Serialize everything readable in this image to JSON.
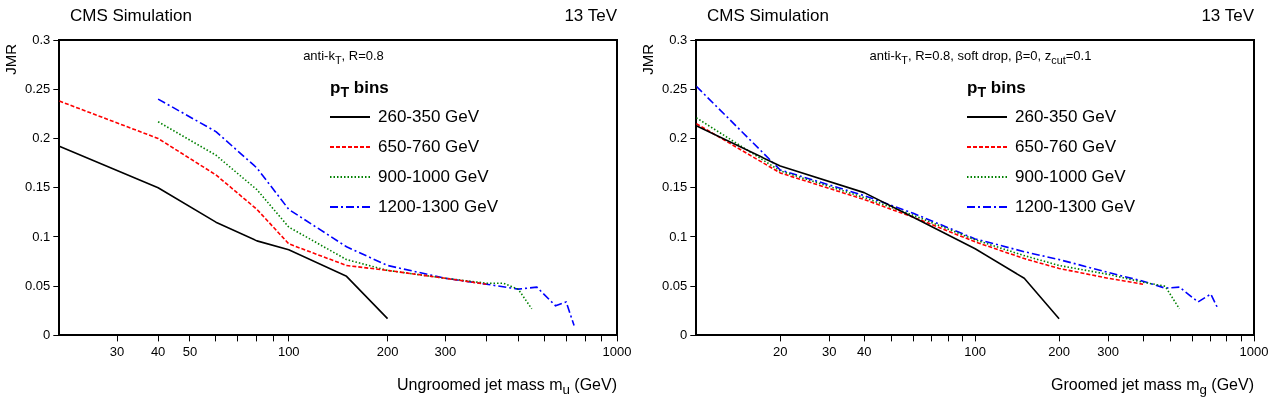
{
  "chart_data": [
    {
      "type": "line",
      "title": "CMS Simulation",
      "subtitle": "13 TeV",
      "annotations": [
        "anti-k$_{T}$, R=0.8"
      ],
      "legend_title": "p$_{T}$ bins",
      "xlabel": "Ungroomed jet mass m$_{u}$ (GeV)",
      "ylabel": "JMR",
      "log": "x",
      "grid": false,
      "legend": "top right",
      "marker": "none",
      "xlim": [
        20,
        1000
      ],
      "xticks": [
        30,
        40,
        50,
        {
          "value": 60,
          "label": null
        },
        {
          "value": 70,
          "label": null
        },
        {
          "value": 80,
          "label": null
        },
        {
          "value": 90,
          "label": null
        },
        100,
        200,
        300,
        {
          "value": 400,
          "label": null
        },
        {
          "value": 500,
          "label": null
        },
        {
          "value": 600,
          "label": null
        },
        {
          "value": 700,
          "label": null
        },
        {
          "value": 800,
          "label": null
        },
        {
          "value": 900,
          "label": null
        },
        1000
      ],
      "ylim": [
        0,
        0.3
      ],
      "yticks": [
        0,
        0.05,
        0.1,
        0.15,
        0.2,
        0.25,
        0.3
      ],
      "series": [
        {
          "name": "260-350 GeV",
          "color": "#000000",
          "line_style": "solid",
          "x": [
            20,
            40,
            60,
            80,
            100,
            150,
            200
          ],
          "values": [
            0.192,
            0.15,
            0.115,
            0.096,
            0.087,
            0.06,
            0.017
          ]
        },
        {
          "name": "650-760 GeV",
          "color": "#ff0000",
          "line_style": "dashed",
          "x": [
            20,
            40,
            60,
            80,
            100,
            150,
            200,
            300,
            400
          ],
          "values": [
            0.238,
            0.2,
            0.163,
            0.128,
            0.093,
            0.071,
            0.066,
            0.058,
            0.052
          ]
        },
        {
          "name": "900-1000 GeV",
          "color": "#008000",
          "line_style": "dotted",
          "x": [
            40,
            60,
            80,
            100,
            150,
            200,
            300,
            400,
            450,
            500,
            550
          ],
          "values": [
            0.217,
            0.183,
            0.148,
            0.11,
            0.077,
            0.066,
            0.058,
            0.053,
            0.053,
            0.047,
            0.027
          ]
        },
        {
          "name": "1200-1300 GeV",
          "color": "#0000ff",
          "line_style": "dashdot",
          "x": [
            40,
            60,
            80,
            100,
            150,
            200,
            300,
            400,
            500,
            570,
            650,
            700,
            740
          ],
          "values": [
            0.24,
            0.207,
            0.17,
            0.128,
            0.09,
            0.071,
            0.058,
            0.052,
            0.047,
            0.049,
            0.03,
            0.034,
            0.01
          ]
        }
      ]
    },
    {
      "type": "line",
      "title": "CMS Simulation",
      "subtitle": "13 TeV",
      "annotations": [
        "anti-k$_{T}$, R=0.8, soft drop, β=0, z$_{cut}$=0.1"
      ],
      "legend_title": "p$_{T}$ bins",
      "xlabel": "Groomed jet mass m$_{g}$ (GeV)",
      "ylabel": "JMR",
      "log": "x",
      "grid": false,
      "legend": "top right",
      "marker": "none",
      "xlim": [
        10,
        1000
      ],
      "xticks": [
        20,
        30,
        40,
        {
          "value": 50,
          "label": null
        },
        {
          "value": 60,
          "label": null
        },
        {
          "value": 70,
          "label": null
        },
        {
          "value": 80,
          "label": null
        },
        {
          "value": 90,
          "label": null
        },
        100,
        200,
        300,
        {
          "value": 400,
          "label": null
        },
        {
          "value": 500,
          "label": null
        },
        {
          "value": 600,
          "label": null
        },
        {
          "value": 700,
          "label": null
        },
        {
          "value": 800,
          "label": null
        },
        {
          "value": 900,
          "label": null
        },
        1000
      ],
      "ylim": [
        0,
        0.3
      ],
      "yticks": [
        0,
        0.05,
        0.1,
        0.15,
        0.2,
        0.25,
        0.3
      ],
      "series": [
        {
          "name": "260-350 GeV",
          "color": "#000000",
          "line_style": "solid",
          "x": [
            10,
            20,
            40,
            60,
            100,
            150,
            200
          ],
          "values": [
            0.213,
            0.172,
            0.145,
            0.12,
            0.088,
            0.058,
            0.017
          ]
        },
        {
          "name": "650-760 GeV",
          "color": "#ff0000",
          "line_style": "dashed",
          "x": [
            10,
            20,
            40,
            60,
            100,
            150,
            200,
            300,
            400
          ],
          "values": [
            0.215,
            0.165,
            0.138,
            0.12,
            0.095,
            0.078,
            0.068,
            0.058,
            0.052
          ]
        },
        {
          "name": "900-1000 GeV",
          "color": "#008000",
          "line_style": "dotted",
          "x": [
            10,
            20,
            40,
            60,
            100,
            150,
            200,
            300,
            400,
            480,
            540
          ],
          "values": [
            0.221,
            0.167,
            0.14,
            0.122,
            0.097,
            0.081,
            0.071,
            0.062,
            0.054,
            0.05,
            0.027
          ]
        },
        {
          "name": "1200-1300 GeV",
          "color": "#0000ff",
          "line_style": "dashdot",
          "x": [
            10,
            20,
            40,
            60,
            100,
            150,
            200,
            300,
            400,
            480,
            540,
            630,
            700,
            740
          ],
          "values": [
            0.253,
            0.168,
            0.142,
            0.124,
            0.098,
            0.085,
            0.077,
            0.064,
            0.055,
            0.048,
            0.049,
            0.034,
            0.042,
            0.028
          ]
        }
      ]
    }
  ]
}
